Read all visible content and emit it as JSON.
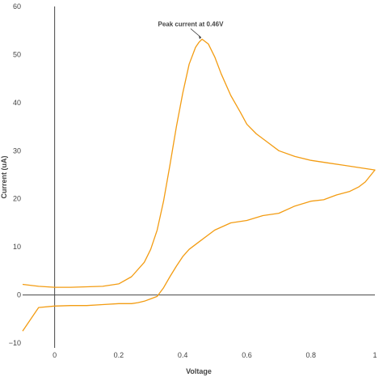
{
  "chart_data": {
    "type": "line",
    "xlabel": "Voltage",
    "ylabel": "Current (uA)",
    "xlim": [
      -0.1,
      1.0
    ],
    "ylim": [
      -11,
      60
    ],
    "x_ticks": [
      0,
      0.2,
      0.4,
      0.6,
      0.8,
      1
    ],
    "y_ticks": [
      -10,
      0,
      10,
      20,
      30,
      40,
      50,
      60
    ],
    "grid": false,
    "zero_lines": true,
    "line_color": "#f39c12",
    "series": [
      {
        "x": [
          -0.1,
          -0.05,
          0.0,
          0.05,
          0.1,
          0.15,
          0.2,
          0.24,
          0.28,
          0.3,
          0.32,
          0.34,
          0.36,
          0.38,
          0.4,
          0.42,
          0.44,
          0.45,
          0.46,
          0.48,
          0.5,
          0.52,
          0.55,
          0.58,
          0.6,
          0.63,
          0.66,
          0.7,
          0.75,
          0.8,
          0.85,
          0.9,
          0.95,
          1.0,
          0.97,
          0.95,
          0.92,
          0.88,
          0.84,
          0.8,
          0.75,
          0.7,
          0.65,
          0.6,
          0.55,
          0.5,
          0.45,
          0.42,
          0.4,
          0.38,
          0.36,
          0.34,
          0.32,
          0.3,
          0.28,
          0.26,
          0.24,
          0.2,
          0.15,
          0.1,
          0.05,
          0.0,
          -0.05,
          -0.1
        ],
        "y": [
          2.2,
          1.8,
          1.6,
          1.6,
          1.7,
          1.8,
          2.3,
          3.8,
          6.8,
          9.5,
          13.5,
          19.5,
          27.0,
          35.0,
          42.0,
          48.0,
          51.5,
          52.5,
          53.2,
          52.2,
          49.5,
          46.0,
          41.5,
          38.0,
          35.5,
          33.5,
          32.0,
          30.0,
          28.8,
          28.0,
          27.5,
          27.0,
          26.5,
          26.0,
          23.5,
          22.5,
          21.5,
          20.8,
          19.8,
          19.5,
          18.5,
          17.0,
          16.5,
          15.5,
          15.0,
          13.5,
          11.0,
          9.5,
          8.0,
          6.0,
          3.8,
          1.5,
          -0.3,
          -0.8,
          -1.3,
          -1.6,
          -1.8,
          -1.8,
          -2.0,
          -2.2,
          -2.2,
          -2.3,
          -2.6,
          -7.5
        ]
      }
    ],
    "annotations": [
      {
        "text": "Peak current at 0.46V",
        "x": 0.46,
        "y": 53.2
      }
    ]
  }
}
